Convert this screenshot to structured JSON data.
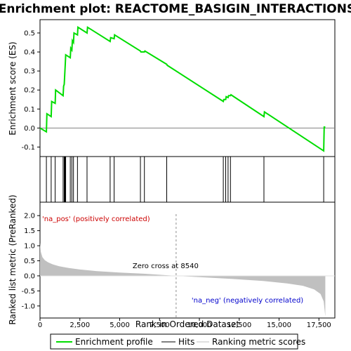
{
  "chart_data": {
    "title": "Enrichment plot: REACTOME_BASIGIN_INTERACTIONS",
    "top_panel": {
      "type": "line",
      "ylabel": "Enrichment score (ES)",
      "ylim": [
        -0.15,
        0.57
      ],
      "yticks": [
        "0.0",
        "0.1",
        "0.2",
        "0.3",
        "0.4",
        "0.5",
        "-0.1"
      ],
      "ytick_values": [
        0.0,
        0.1,
        0.2,
        0.3,
        0.4,
        0.5,
        -0.1
      ],
      "series": [
        {
          "name": "Enrichment profile",
          "color": "#00dd00",
          "x": [
            0,
            400,
            430,
            700,
            730,
            950,
            980,
            1450,
            1480,
            1520,
            1550,
            1580,
            1610,
            1900,
            1930,
            2000,
            2030,
            2100,
            2130,
            2350,
            2380,
            2950,
            2980,
            4400,
            4430,
            4650,
            4680,
            6300,
            6330,
            6550,
            6580,
            7950,
            7980,
            11500,
            11530,
            11650,
            11680,
            11800,
            11830,
            11950,
            11980,
            14050,
            14080,
            17800,
            17830,
            17900
          ],
          "y": [
            0.0,
            -0.02,
            0.075,
            0.06,
            0.14,
            0.13,
            0.2,
            0.17,
            0.22,
            0.23,
            0.28,
            0.33,
            0.385,
            0.37,
            0.42,
            0.41,
            0.46,
            0.45,
            0.5,
            0.49,
            0.53,
            0.5,
            0.53,
            0.455,
            0.475,
            0.47,
            0.49,
            0.405,
            0.4,
            0.4,
            0.405,
            0.335,
            0.33,
            0.14,
            0.15,
            0.15,
            0.165,
            0.16,
            0.17,
            0.17,
            0.175,
            0.06,
            0.085,
            -0.12,
            0.005,
            0.005
          ]
        }
      ]
    },
    "hits": {
      "name": "Hits",
      "x": [
        400,
        700,
        950,
        1450,
        1520,
        1550,
        1580,
        1610,
        1900,
        2000,
        2100,
        2350,
        2950,
        4400,
        4650,
        6300,
        6550,
        7950,
        11500,
        11650,
        11800,
        11950,
        14050,
        17800
      ]
    },
    "ranking": {
      "name": "Ranking metric scores",
      "type": "area",
      "ylabel": "Ranked list metric (PreRanked)",
      "xlabel": "Rank in Ordered Dataset",
      "xlim": [
        0,
        18500
      ],
      "ylim": [
        -1.4,
        2.05
      ],
      "xticks": [
        "0",
        "2,500",
        "5,000",
        "7,500",
        "10,000",
        "12,500",
        "15,000",
        "17,500"
      ],
      "xtick_values": [
        0,
        2500,
        5000,
        7500,
        10000,
        12500,
        15000,
        17500
      ],
      "yticks": [
        "2.0",
        "1.5",
        "1.0",
        "0.5",
        "0.0",
        "-0.5",
        "-1.0"
      ],
      "ytick_values": [
        2.0,
        1.5,
        1.0,
        0.5,
        0.0,
        -0.5,
        -1.0
      ],
      "curve_x": [
        0,
        50,
        150,
        300,
        500,
        800,
        1200,
        1800,
        2500,
        3500,
        5000,
        6500,
        8000,
        8540,
        10000,
        12000,
        14000,
        15500,
        16500,
        17200,
        17600,
        17800,
        17900
      ],
      "curve_y": [
        1.1,
        0.8,
        0.62,
        0.52,
        0.45,
        0.38,
        0.32,
        0.26,
        0.21,
        0.16,
        0.11,
        0.07,
        0.02,
        0.0,
        -0.04,
        -0.1,
        -0.17,
        -0.25,
        -0.33,
        -0.45,
        -0.6,
        -0.85,
        -1.35
      ],
      "zero_cross": 8540,
      "zero_cross_label": "Zero cross at 8540",
      "pos_label": "'na_pos' (positively correlated)",
      "neg_label": "'na_neg' (negatively correlated)",
      "pos_color": "#cc0000",
      "neg_color": "#0000cc"
    },
    "color_bar": [
      {
        "from": 0,
        "to": 1500,
        "color": "#e8202a"
      },
      {
        "from": 1500,
        "to": 3000,
        "color": "#ef4a4a"
      },
      {
        "from": 3000,
        "to": 4500,
        "color": "#f56a6a"
      },
      {
        "from": 4500,
        "to": 6400,
        "color": "#f88c8c"
      },
      {
        "from": 6400,
        "to": 8540,
        "color": "#fbbcdc"
      },
      {
        "from": 8540,
        "to": 10800,
        "color": "#d9d2f2"
      },
      {
        "from": 10800,
        "to": 12700,
        "color": "#b8b4ef"
      },
      {
        "from": 12700,
        "to": 14100,
        "color": "#8a80ec"
      },
      {
        "from": 14100,
        "to": 16900,
        "color": "#5a4ce6"
      },
      {
        "from": 16900,
        "to": 17900,
        "color": "#1c10c8"
      }
    ],
    "legend": {
      "entries": [
        {
          "label": "Enrichment profile",
          "color": "#00dd00"
        },
        {
          "label": "Hits",
          "color": "#000000"
        },
        {
          "label": "Ranking metric scores",
          "color": "#c0c0c0"
        }
      ]
    }
  }
}
